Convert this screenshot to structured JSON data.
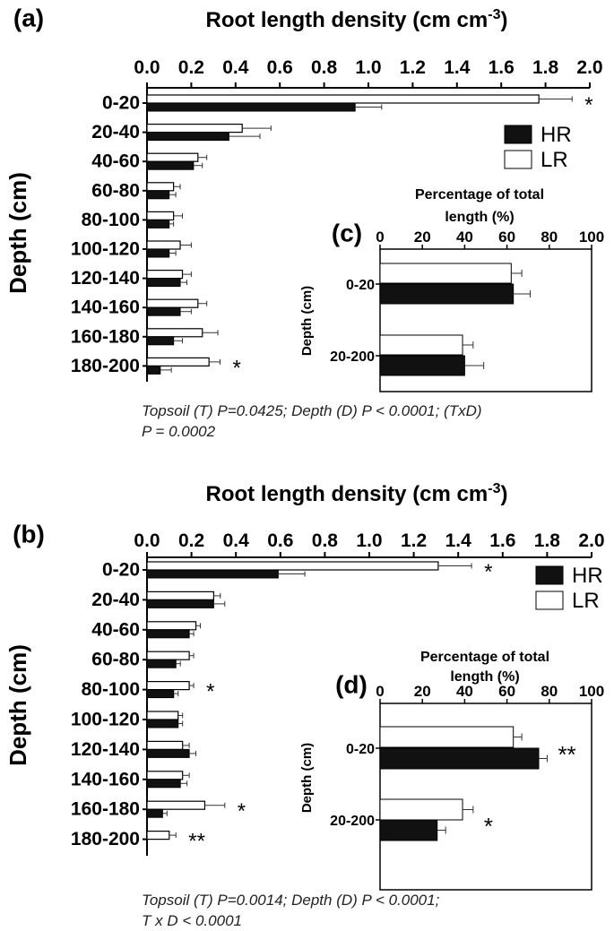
{
  "chart_data": [
    {
      "panel": "(a)",
      "type": "bar",
      "orientation": "horizontal",
      "title": "Root length density (cm cm",
      "title_sup": "-3",
      "title_close": ")",
      "ylabel": "Depth (cm)",
      "categories": [
        "0-20",
        "20-40",
        "40-60",
        "60-80",
        "80-100",
        "100-120",
        "120-140",
        "140-160",
        "160-180",
        "180-200"
      ],
      "xlim": [
        0,
        2.0
      ],
      "xticks": [
        "0.0",
        "0.2",
        "0.4",
        "0.6",
        "0.8",
        "1.0",
        "1.2",
        "1.4",
        "1.6",
        "1.8",
        "2.0"
      ],
      "series": [
        {
          "name": "LR",
          "color": "#ffffff",
          "values": [
            1.77,
            0.43,
            0.23,
            0.12,
            0.12,
            0.15,
            0.16,
            0.23,
            0.25,
            0.28
          ],
          "errors": [
            0.15,
            0.13,
            0.04,
            0.03,
            0.04,
            0.05,
            0.04,
            0.04,
            0.07,
            0.05
          ]
        },
        {
          "name": "HR",
          "color": "#111111",
          "values": [
            0.94,
            0.37,
            0.21,
            0.1,
            0.1,
            0.1,
            0.15,
            0.15,
            0.12,
            0.06
          ],
          "errors": [
            0.12,
            0.14,
            0.04,
            0.03,
            0.02,
            0.03,
            0.03,
            0.05,
            0.04,
            0.05
          ]
        }
      ],
      "significance": [
        {
          "category": "0-20",
          "mark": "*"
        },
        {
          "category": "180-200",
          "mark": "*"
        }
      ],
      "legend": [
        "HR",
        "LR"
      ],
      "caption": [
        "Topsoil (T) P=0.0425; Depth (D) P < 0.0001; (TxD)",
        "P = 0.0002"
      ]
    },
    {
      "panel": "(c)",
      "type": "bar",
      "orientation": "horizontal",
      "title": [
        "Percentage of  total",
        "length (%)"
      ],
      "ylabel": "Depth (cm)",
      "categories": [
        "0-20",
        "20-200"
      ],
      "xlim": [
        0,
        100
      ],
      "xticks": [
        "0",
        "20",
        "40",
        "60",
        "80",
        "100"
      ],
      "series": [
        {
          "name": "LR",
          "color": "#ffffff",
          "values": [
            62,
            39
          ],
          "errors": [
            5,
            5
          ]
        },
        {
          "name": "HR",
          "color": "#111111",
          "values": [
            63,
            40
          ],
          "errors": [
            8,
            9
          ]
        }
      ]
    },
    {
      "panel": "(b)",
      "type": "bar",
      "orientation": "horizontal",
      "title": "Root length density (cm cm",
      "title_sup": "-3",
      "title_close": ")",
      "ylabel": "Depth (cm)",
      "categories": [
        "0-20",
        "20-40",
        "40-60",
        "60-80",
        "80-100",
        "100-120",
        "120-140",
        "140-160",
        "160-180",
        "180-200"
      ],
      "xlim": [
        0,
        2.0
      ],
      "xticks": [
        "0.0",
        "0.2",
        "0.4",
        "0.6",
        "0.8",
        "1.0",
        "1.2",
        "1.4",
        "1.6",
        "1.8",
        "2.0"
      ],
      "series": [
        {
          "name": "LR",
          "color": "#ffffff",
          "values": [
            1.31,
            0.3,
            0.22,
            0.19,
            0.19,
            0.14,
            0.16,
            0.16,
            0.26,
            0.1
          ],
          "errors": [
            0.15,
            0.03,
            0.02,
            0.02,
            0.02,
            0.02,
            0.03,
            0.03,
            0.09,
            0.03
          ]
        },
        {
          "name": "HR",
          "color": "#111111",
          "values": [
            0.59,
            0.3,
            0.19,
            0.13,
            0.12,
            0.14,
            0.19,
            0.15,
            0.07,
            0.0
          ],
          "errors": [
            0.12,
            0.05,
            0.02,
            0.02,
            0.02,
            0.02,
            0.03,
            0.03,
            0.02,
            0.0
          ]
        }
      ],
      "significance": [
        {
          "category": "0-20",
          "mark": "*"
        },
        {
          "category": "80-100",
          "mark": "*"
        },
        {
          "category": "160-180",
          "mark": "*"
        },
        {
          "category": "180-200",
          "mark": "**"
        }
      ],
      "legend": [
        "HR",
        "LR"
      ],
      "caption": [
        "Topsoil (T) P=0.0014; Depth (D) P < 0.0001;",
        "T x D < 0.0001"
      ]
    },
    {
      "panel": "(d)",
      "type": "bar",
      "orientation": "horizontal",
      "title": [
        "Percentage of  total",
        "length (%)"
      ],
      "ylabel": "Depth (cm)",
      "categories": [
        "0-20",
        "20-200"
      ],
      "xlim": [
        0,
        100
      ],
      "xticks": [
        "0",
        "20",
        "40",
        "60",
        "80",
        "100"
      ],
      "series": [
        {
          "name": "LR",
          "color": "#ffffff",
          "values": [
            63,
            39
          ],
          "errors": [
            4,
            5
          ]
        },
        {
          "name": "HR",
          "color": "#111111",
          "values": [
            75,
            27
          ],
          "errors": [
            4,
            4
          ]
        }
      ],
      "significance": [
        {
          "category": "0-20",
          "mark": "**"
        },
        {
          "category": "20-200",
          "mark": "*"
        }
      ]
    }
  ]
}
